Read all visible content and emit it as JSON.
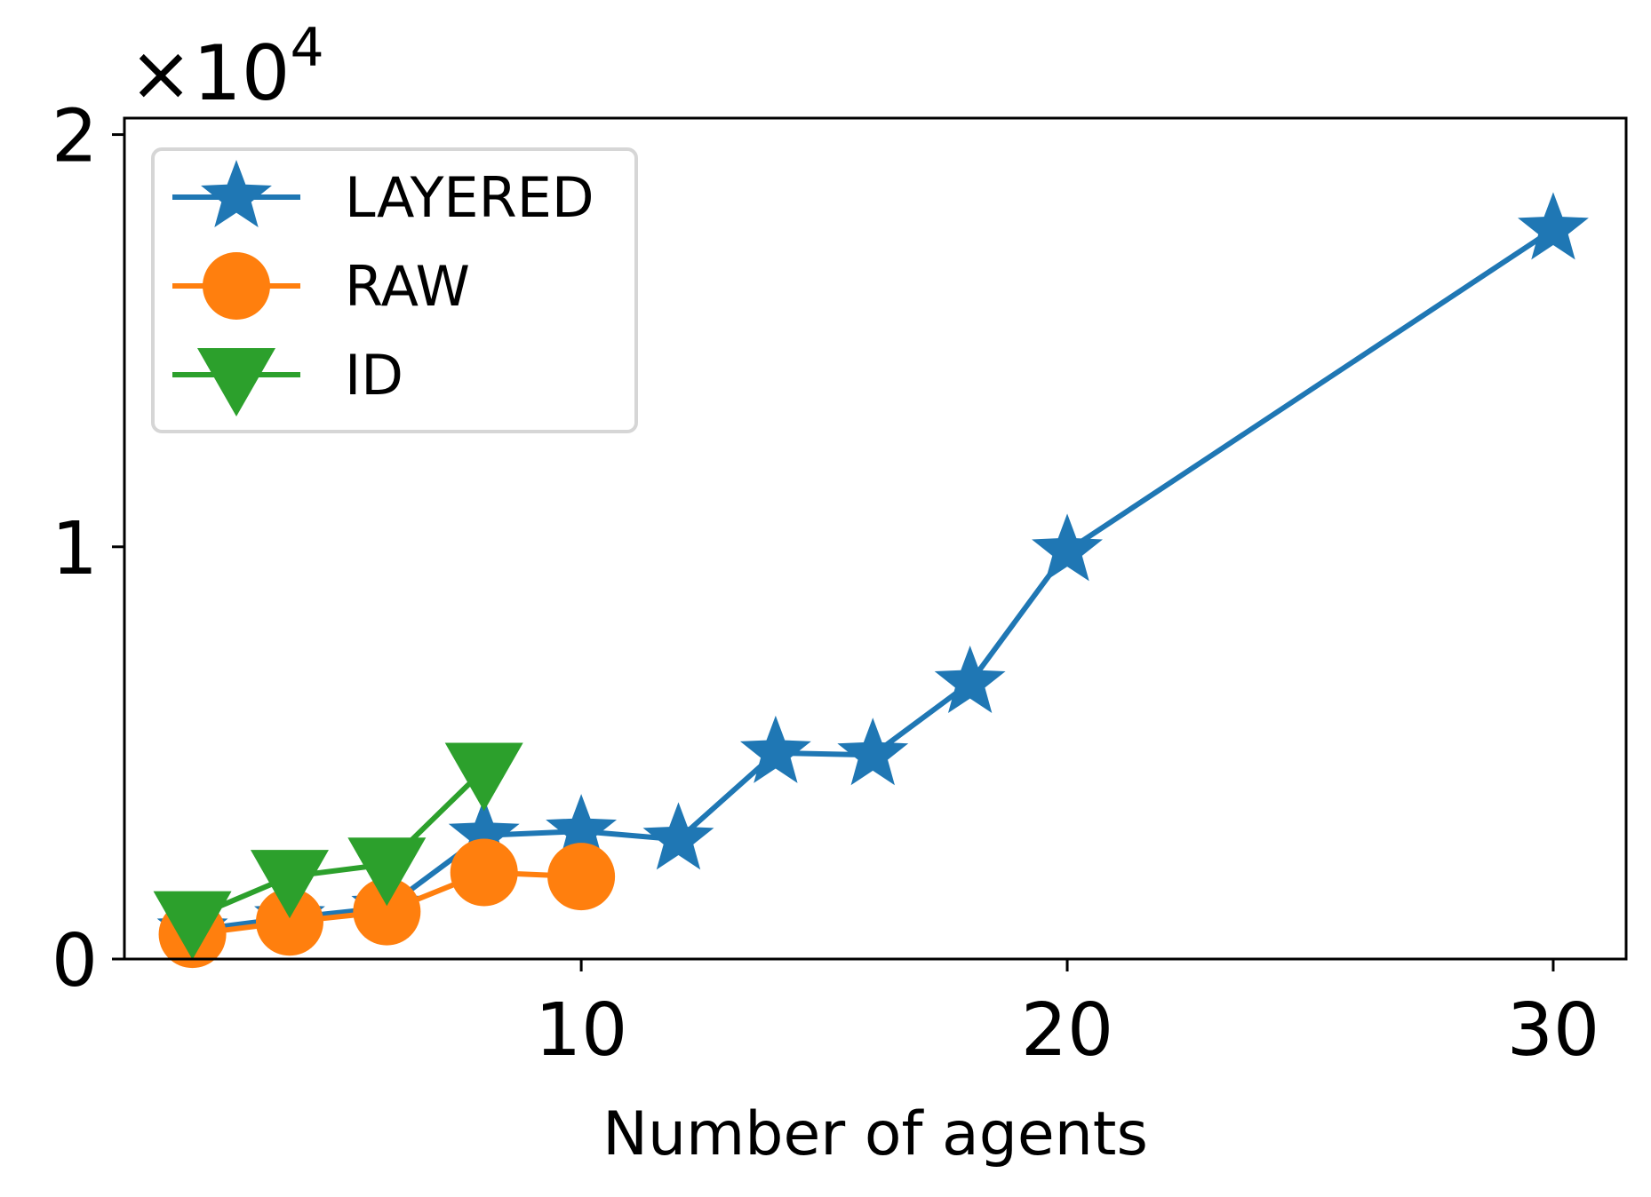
{
  "chart_data": {
    "type": "line",
    "title": "",
    "xlabel": "Number of agents",
    "ylabel": "",
    "y_scale_label": "×10",
    "y_scale_exponent": "4",
    "xlim": [
      0.6,
      31.5
    ],
    "ylim": [
      0,
      20400
    ],
    "x_ticks": [
      10,
      20,
      30
    ],
    "x_tick_labels": [
      "10",
      "20",
      "30"
    ],
    "y_ticks": [
      0,
      10000,
      20000
    ],
    "y_tick_labels": [
      "0",
      "1",
      "2"
    ],
    "grid": false,
    "legend_position": "upper-left",
    "series": [
      {
        "name": "LAYERED",
        "color": "#1f77b4",
        "marker": "star",
        "x": [
          2,
          4,
          6,
          8,
          10,
          12,
          14,
          16,
          18,
          20,
          30
        ],
        "y": [
          700,
          1000,
          1250,
          3000,
          3100,
          2900,
          5000,
          4950,
          6700,
          9900,
          17700
        ]
      },
      {
        "name": "RAW",
        "color": "#ff7f0e",
        "marker": "circle",
        "x": [
          2,
          4,
          6,
          8,
          10
        ],
        "y": [
          600,
          900,
          1150,
          2100,
          2000
        ]
      },
      {
        "name": "ID",
        "color": "#2ca02c",
        "marker": "triangle-down",
        "x": [
          2,
          4,
          6,
          8
        ],
        "y": [
          1000,
          2000,
          2300,
          4600
        ]
      }
    ]
  }
}
